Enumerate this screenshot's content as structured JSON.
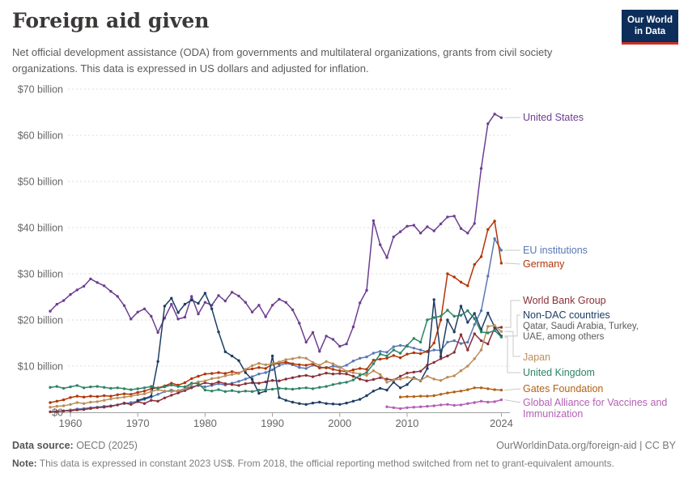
{
  "header": {
    "title": "Foreign aid given",
    "subtitle": "Net official development assistance (ODA) from governments and multilateral organizations, grants from civil society organizations. This data is expressed in US dollars and adjusted for inflation.",
    "logo": {
      "line1": "Our World",
      "line2": "in Data",
      "bg_color": "#0d2e5a",
      "accent_color": "#cf2d24"
    }
  },
  "chart_data": {
    "type": "line",
    "title": "Foreign aid given",
    "unit": "US dollars, constant 2023 US$",
    "grid": "dashed horizontal",
    "legend_position": "right of lines, color-matched labels",
    "x_axis": {
      "ticks": [
        1960,
        1970,
        1980,
        1990,
        2000,
        2010,
        2024
      ],
      "range": [
        1957,
        2025
      ]
    },
    "y_axis": {
      "tick_values": [
        0,
        10,
        20,
        30,
        40,
        50,
        60,
        70
      ],
      "tick_labels": [
        "$0",
        "$10 billion",
        "$20 billion",
        "$30 billion",
        "$40 billion",
        "$50 billion",
        "$60 billion",
        "$70 billion"
      ],
      "range": [
        0,
        70
      ]
    },
    "series": [
      {
        "name": "United States",
        "color": "#6D3E91",
        "start_year": 1957,
        "values": [
          21.9,
          23.4,
          24.2,
          25.5,
          26.5,
          27.3,
          28.9,
          28.1,
          27.4,
          26.2,
          25.1,
          23.1,
          20.2,
          21.7,
          22.4,
          20.8,
          17.3,
          20.4,
          23.4,
          20.2,
          20.6,
          25.1,
          21.3,
          23.8,
          23.2,
          25.3,
          24.1,
          26.0,
          25.2,
          23.8,
          21.7,
          23.2,
          20.7,
          23.2,
          24.5,
          23.8,
          22.2,
          19.3,
          15.2,
          17.3,
          13.2,
          16.5,
          15.8,
          14.3,
          14.8,
          18.5,
          23.7,
          26.4,
          41.5,
          36.3,
          33.5,
          38.0,
          39.1,
          40.3,
          40.5,
          38.8,
          40.2,
          39.3,
          40.8,
          42.3,
          42.5,
          39.8,
          38.8,
          40.9,
          52.8,
          62.5,
          64.6,
          63.8
        ]
      },
      {
        "name": "EU institutions",
        "color": "#5878B3",
        "start_year": 1958,
        "values": [
          0.2,
          0.3,
          0.5,
          0.7,
          0.8,
          1.0,
          1.1,
          1.3,
          1.4,
          1.6,
          1.9,
          2.1,
          2.4,
          2.8,
          3.3,
          3.9,
          4.5,
          4.8,
          4.5,
          5.1,
          5.5,
          5.8,
          5.5,
          5.8,
          6.2,
          5.9,
          6.3,
          6.7,
          7.2,
          7.7,
          8.3,
          8.6,
          9.2,
          10.1,
          10.6,
          10.3,
          9.7,
          9.5,
          10.2,
          9.8,
          9.6,
          10.0,
          9.7,
          10.2,
          11.1,
          11.7,
          12.0,
          12.8,
          13.2,
          13.0,
          14.2,
          14.5,
          14.3,
          13.9,
          13.5,
          13.1,
          13.5,
          13.4,
          15.2,
          15.5,
          14.9,
          15.2,
          19.0,
          22.0,
          29.5,
          37.6,
          35.1
        ]
      },
      {
        "name": "Germany",
        "color": "#B13507",
        "start_year": 1957,
        "values": [
          2.1,
          2.4,
          2.7,
          3.2,
          3.5,
          3.3,
          3.5,
          3.4,
          3.6,
          3.5,
          3.8,
          4.0,
          3.9,
          4.3,
          4.6,
          5.1,
          5.3,
          5.7,
          6.3,
          5.9,
          6.4,
          7.3,
          7.8,
          8.3,
          8.4,
          8.6,
          8.4,
          8.8,
          8.5,
          9.2,
          9.4,
          9.7,
          9.5,
          10.4,
          10.6,
          10.9,
          10.5,
          10.3,
          10.2,
          10.5,
          9.6,
          9.7,
          9.3,
          9.0,
          8.8,
          9.2,
          9.5,
          9.3,
          11.3,
          11.5,
          11.7,
          12.3,
          11.8,
          12.6,
          12.9,
          12.7,
          13.2,
          15.0,
          20.0,
          30.0,
          29.3,
          28.2,
          27.4,
          32.0,
          33.7,
          39.6,
          41.4,
          32.3
        ]
      },
      {
        "name": "World Bank Group",
        "color": "#883039",
        "start_year": 1957,
        "values": [
          0.1,
          0.2,
          0.3,
          0.3,
          0.5,
          0.6,
          0.8,
          1.0,
          1.1,
          1.3,
          1.6,
          2.0,
          1.7,
          2.3,
          1.9,
          2.6,
          2.4,
          3.1,
          3.7,
          4.2,
          4.7,
          5.3,
          5.9,
          6.4,
          6.1,
          6.6,
          6.2,
          6.0,
          5.8,
          6.2,
          6.4,
          6.3,
          6.6,
          6.9,
          6.8,
          7.2,
          7.5,
          7.8,
          8.0,
          7.7,
          8.1,
          8.5,
          8.3,
          8.4,
          8.3,
          7.8,
          7.2,
          6.8,
          7.1,
          7.5,
          7.2,
          7.0,
          7.8,
          8.5,
          8.7,
          8.9,
          10.2,
          10.8,
          11.6,
          12.2,
          13.0,
          16.8,
          13.5,
          17.0,
          15.5,
          14.8,
          18.3,
          18.4
        ]
      },
      {
        "name": "Non-DAC countries",
        "color": "#1D3D63",
        "start_year": 1970,
        "note": "Qatar, Saudi Arabia, Turkey, UAE, among others",
        "values": [
          2.6,
          3.0,
          3.5,
          11.0,
          23.0,
          24.7,
          21.6,
          23.4,
          24.3,
          23.6,
          25.8,
          22.4,
          17.4,
          13.1,
          12.2,
          11.2,
          8.6,
          7.1,
          4.1,
          4.6,
          12.2,
          3.2,
          2.6,
          2.2,
          1.9,
          1.7,
          2.0,
          2.2,
          1.9,
          1.8,
          1.7,
          2.0,
          2.4,
          2.8,
          3.6,
          4.6,
          5.2,
          4.8,
          6.5,
          5.3,
          6.0,
          7.5,
          6.8,
          9.5,
          24.4,
          12.1,
          20.0,
          17.4,
          23.0,
          19.5,
          21.4,
          17.9,
          21.5,
          18.5,
          16.5
        ]
      },
      {
        "name": "Japan",
        "color": "#BC8E5A",
        "start_year": 1957,
        "values": [
          1.1,
          1.3,
          1.4,
          1.7,
          2.1,
          1.9,
          2.2,
          2.3,
          2.6,
          2.9,
          3.1,
          3.3,
          3.5,
          3.8,
          4.0,
          4.5,
          4.9,
          4.6,
          4.5,
          4.7,
          5.1,
          6.1,
          6.6,
          6.8,
          7.3,
          7.5,
          7.9,
          8.2,
          8.4,
          9.3,
          10.1,
          10.6,
          10.3,
          10.5,
          10.9,
          11.4,
          11.6,
          11.9,
          11.7,
          10.8,
          10.2,
          11.0,
          10.5,
          9.8,
          8.9,
          8.6,
          8.3,
          8.0,
          9.0,
          8.2,
          6.5,
          7.0,
          7.2,
          7.6,
          7.3,
          6.9,
          7.8,
          7.2,
          6.9,
          7.6,
          7.9,
          9.0,
          10.0,
          11.6,
          13.5,
          18.6,
          18.8,
          17.5
        ]
      },
      {
        "name": "United Kingdom",
        "color": "#2C8465",
        "start_year": 1957,
        "values": [
          5.4,
          5.6,
          5.2,
          5.5,
          5.8,
          5.3,
          5.5,
          5.6,
          5.4,
          5.2,
          5.3,
          5.1,
          4.9,
          5.1,
          5.3,
          5.6,
          5.2,
          5.5,
          5.9,
          5.6,
          5.5,
          6.3,
          6.2,
          4.8,
          4.6,
          4.9,
          4.5,
          4.7,
          4.4,
          4.6,
          4.5,
          4.8,
          4.9,
          5.0,
          5.2,
          5.1,
          5.0,
          5.2,
          5.3,
          5.1,
          5.4,
          5.6,
          6.0,
          6.3,
          6.5,
          7.0,
          8.0,
          8.6,
          10.5,
          12.6,
          12.2,
          13.5,
          12.8,
          14.5,
          16.0,
          15.2,
          20.0,
          20.5,
          20.8,
          22.1,
          20.8,
          21.0,
          22.0,
          20.3,
          17.4,
          17.2,
          17.7,
          16.3
        ]
      },
      {
        "name": "Gates Foundation",
        "color": "#B16214",
        "start_year": 2009,
        "values": [
          3.3,
          3.4,
          3.4,
          3.5,
          3.5,
          3.6,
          3.9,
          4.2,
          4.4,
          4.6,
          4.9,
          5.3,
          5.3,
          5.1,
          4.9,
          4.8
        ]
      },
      {
        "name": "Global Alliance for Vaccines and Immunization",
        "color": "#B35FB4",
        "start_year": 2007,
        "values": [
          1.2,
          1.0,
          0.8,
          1.0,
          1.1,
          1.2,
          1.3,
          1.4,
          1.6,
          1.7,
          1.5,
          1.6,
          1.9,
          2.1,
          2.4,
          2.2,
          2.3,
          2.7
        ]
      }
    ]
  },
  "footer": {
    "source_label": "Data source:",
    "source_value": " OECD (2025)",
    "rights": "OurWorldinData.org/foreign-aid | CC BY",
    "note_label": "Note:",
    "note_value": " This data is expressed in constant 2023 US$. From 2018, the official reporting method switched from net to grant-equivalent amounts."
  }
}
